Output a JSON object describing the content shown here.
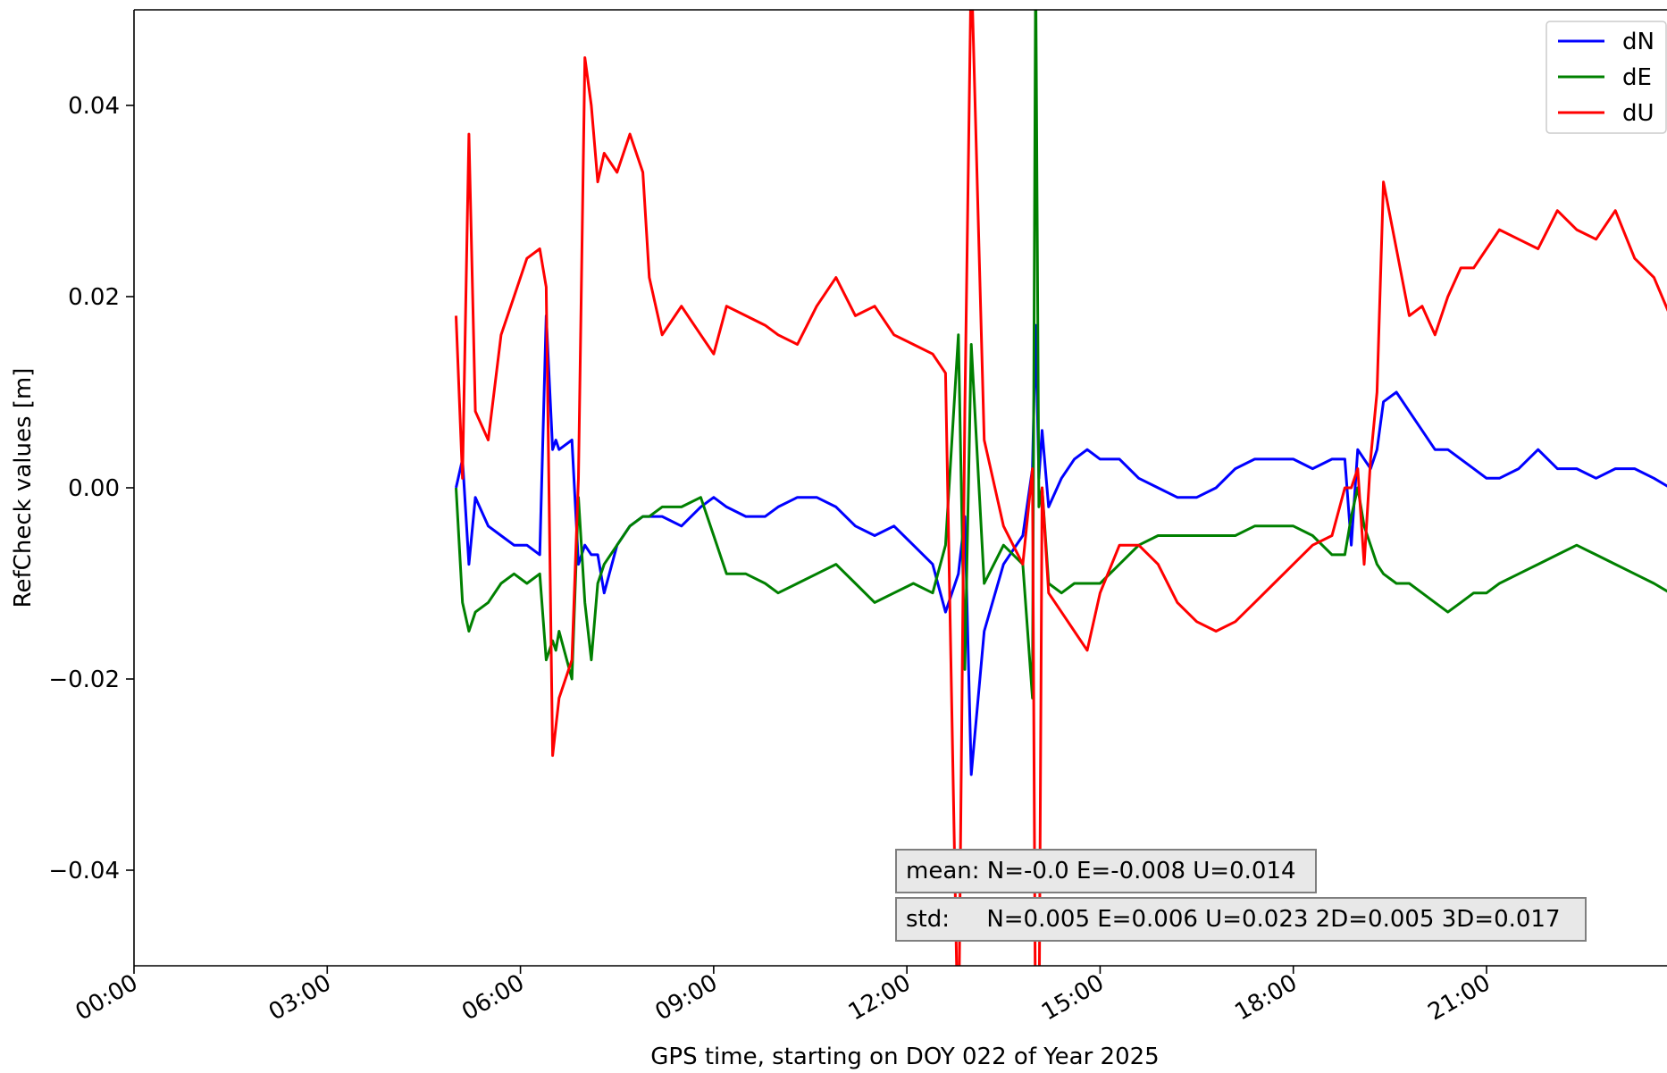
{
  "chart_data": {
    "type": "line",
    "xlabel": "GPS time, starting on DOY 022 of Year 2025",
    "ylabel": "RefCheck values [m]",
    "xlim_hours": [
      0,
      24
    ],
    "ylim": [
      -0.05,
      0.05
    ],
    "grid": false,
    "legend_position": "top-right",
    "x_ticks": [
      "00:00",
      "03:00",
      "06:00",
      "09:00",
      "12:00",
      "15:00",
      "18:00",
      "21:00"
    ],
    "y_ticks": [
      "−0.04",
      "−0.02",
      "0.00",
      "0.02",
      "0.04"
    ],
    "y_tick_values": [
      -0.04,
      -0.02,
      0.0,
      0.02,
      0.04
    ],
    "x_hours": [
      5.0,
      5.1,
      5.2,
      5.3,
      5.5,
      5.7,
      5.9,
      6.1,
      6.3,
      6.4,
      6.5,
      6.55,
      6.6,
      6.8,
      6.9,
      7.0,
      7.1,
      7.2,
      7.3,
      7.5,
      7.7,
      7.9,
      8.0,
      8.2,
      8.5,
      8.8,
      9.0,
      9.2,
      9.5,
      9.8,
      10.0,
      10.3,
      10.6,
      10.9,
      11.2,
      11.5,
      11.8,
      12.1,
      12.4,
      12.6,
      12.8,
      12.9,
      13.0,
      13.2,
      13.5,
      13.8,
      13.95,
      14.0,
      14.05,
      14.1,
      14.2,
      14.4,
      14.6,
      14.8,
      15.0,
      15.3,
      15.6,
      15.9,
      16.2,
      16.5,
      16.8,
      17.1,
      17.4,
      17.7,
      18.0,
      18.3,
      18.6,
      18.8,
      18.9,
      19.0,
      19.1,
      19.2,
      19.3,
      19.4,
      19.6,
      19.8,
      20.0,
      20.2,
      20.4,
      20.6,
      20.8,
      21.0,
      21.2,
      21.5,
      21.8,
      22.1,
      22.4,
      22.7,
      23.0,
      23.3,
      23.6,
      23.85
    ],
    "series": [
      {
        "name": "dN",
        "color": "#0000ff",
        "values": [
          0.0,
          0.003,
          -0.008,
          -0.001,
          -0.004,
          -0.005,
          -0.006,
          -0.006,
          -0.007,
          0.018,
          0.004,
          0.005,
          0.004,
          0.005,
          -0.008,
          -0.006,
          -0.007,
          -0.007,
          -0.011,
          -0.006,
          -0.004,
          -0.003,
          -0.003,
          -0.003,
          -0.004,
          -0.002,
          -0.001,
          -0.002,
          -0.003,
          -0.003,
          -0.002,
          -0.001,
          -0.001,
          -0.002,
          -0.004,
          -0.005,
          -0.004,
          -0.006,
          -0.008,
          -0.013,
          -0.009,
          -0.003,
          -0.03,
          -0.015,
          -0.008,
          -0.005,
          0.002,
          0.017,
          0.001,
          0.006,
          -0.002,
          0.001,
          0.003,
          0.004,
          0.003,
          0.003,
          0.001,
          0.0,
          -0.001,
          -0.001,
          0.0,
          0.002,
          0.003,
          0.003,
          0.003,
          0.002,
          0.003,
          0.003,
          -0.006,
          0.004,
          0.003,
          0.002,
          0.004,
          0.009,
          0.01,
          0.008,
          0.006,
          0.004,
          0.004,
          0.003,
          0.002,
          0.001,
          0.001,
          0.002,
          0.004,
          0.002,
          0.002,
          0.001,
          0.002,
          0.002,
          0.001,
          0.0
        ]
      },
      {
        "name": "dE",
        "color": "#008000",
        "values": [
          0.0,
          -0.012,
          -0.015,
          -0.013,
          -0.012,
          -0.01,
          -0.009,
          -0.01,
          -0.009,
          -0.018,
          -0.016,
          -0.017,
          -0.015,
          -0.02,
          -0.001,
          -0.012,
          -0.018,
          -0.01,
          -0.008,
          -0.006,
          -0.004,
          -0.003,
          -0.003,
          -0.002,
          -0.002,
          -0.001,
          -0.005,
          -0.009,
          -0.009,
          -0.01,
          -0.011,
          -0.01,
          -0.009,
          -0.008,
          -0.01,
          -0.012,
          -0.011,
          -0.01,
          -0.011,
          -0.006,
          0.016,
          -0.019,
          0.015,
          -0.01,
          -0.006,
          -0.008,
          -0.022,
          0.055,
          -0.002,
          0.0,
          -0.01,
          -0.011,
          -0.01,
          -0.01,
          -0.01,
          -0.008,
          -0.006,
          -0.005,
          -0.005,
          -0.005,
          -0.005,
          -0.005,
          -0.004,
          -0.004,
          -0.004,
          -0.005,
          -0.007,
          -0.007,
          -0.003,
          0.0,
          -0.004,
          -0.006,
          -0.008,
          -0.009,
          -0.01,
          -0.01,
          -0.011,
          -0.012,
          -0.013,
          -0.012,
          -0.011,
          -0.011,
          -0.01,
          -0.009,
          -0.008,
          -0.007,
          -0.006,
          -0.007,
          -0.008,
          -0.009,
          -0.01,
          -0.011
        ]
      },
      {
        "name": "dU",
        "color": "#ff0000",
        "values": [
          0.018,
          0.001,
          0.037,
          0.008,
          0.005,
          0.016,
          0.02,
          0.024,
          0.025,
          0.021,
          -0.028,
          -0.025,
          -0.022,
          -0.018,
          0.001,
          0.045,
          0.04,
          0.032,
          0.035,
          0.033,
          0.037,
          0.033,
          0.022,
          0.016,
          0.019,
          0.016,
          0.014,
          0.019,
          0.018,
          0.017,
          0.016,
          0.015,
          0.019,
          0.022,
          0.018,
          0.019,
          0.016,
          0.015,
          0.014,
          0.012,
          -0.06,
          0.008,
          0.055,
          0.005,
          -0.004,
          -0.008,
          0.002,
          -0.06,
          -0.06,
          0.0,
          -0.011,
          -0.013,
          -0.015,
          -0.017,
          -0.011,
          -0.006,
          -0.006,
          -0.008,
          -0.012,
          -0.014,
          -0.015,
          -0.014,
          -0.012,
          -0.01,
          -0.008,
          -0.006,
          -0.005,
          0.0,
          0.0,
          0.002,
          -0.008,
          0.003,
          0.01,
          0.032,
          0.025,
          0.018,
          0.019,
          0.016,
          0.02,
          0.023,
          0.023,
          0.025,
          0.027,
          0.026,
          0.025,
          0.029,
          0.027,
          0.026,
          0.029,
          0.024,
          0.022,
          0.018
        ]
      }
    ]
  },
  "stats": {
    "mean_text": "mean: N=-0.0 E=-0.008 U=0.014",
    "std_text": "std:     N=0.005 E=0.006 U=0.023 2D=0.005 3D=0.017"
  },
  "colors": {
    "axis": "#000000",
    "stat_box_fill": "#e8e8e8",
    "stat_box_stroke": "#7f7f7f",
    "legend_stroke": "#cccccc"
  }
}
